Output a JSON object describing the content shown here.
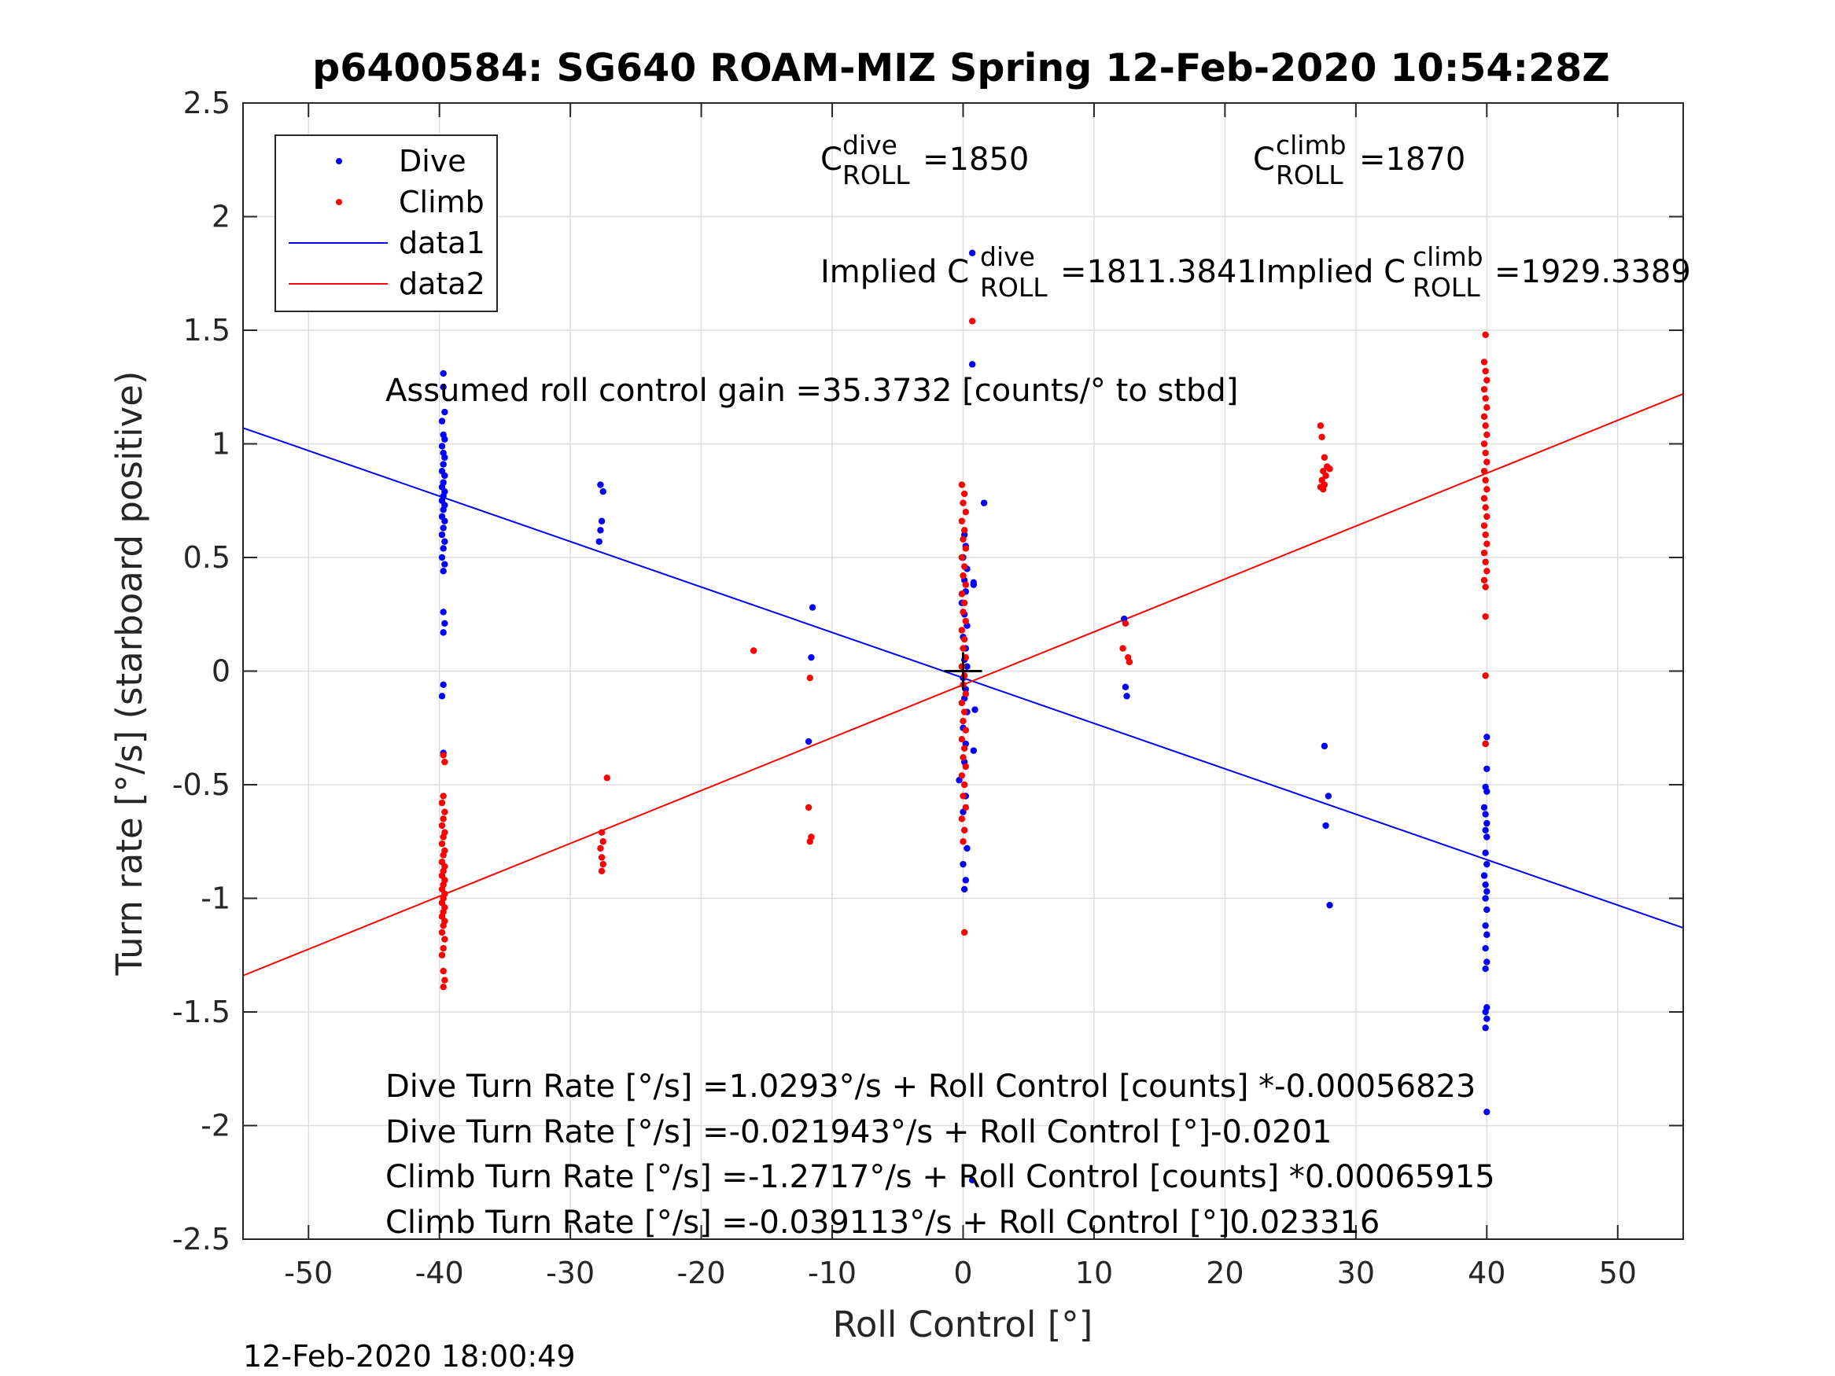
{
  "chart_data": {
    "type": "scatter",
    "title": "p6400584: SG640 ROAM-MIZ Spring 12-Feb-2020 10:54:28Z",
    "xlabel": "Roll Control [°]",
    "ylabel": "Turn rate [°/s] (starboard positive)",
    "xlim": [
      -55,
      55
    ],
    "ylim": [
      -2.5,
      2.5
    ],
    "xticks": [
      -50,
      -40,
      -30,
      -20,
      -10,
      0,
      10,
      20,
      30,
      40,
      50
    ],
    "xtick_labels": [
      "-50",
      "-40",
      "-30",
      "-20",
      "-10",
      "0",
      "10",
      "20",
      "30",
      "40",
      "50"
    ],
    "yticks": [
      -2.5,
      -2,
      -1.5,
      -1,
      -0.5,
      0,
      0.5,
      1,
      1.5,
      2,
      2.5
    ],
    "ytick_labels": [
      "-2.5",
      "-2",
      "-1.5",
      "-1",
      "-0.5",
      "0",
      "0.5",
      "1",
      "1.5",
      "2",
      "2.5"
    ],
    "grid": true,
    "legend_position": "top-left",
    "series": [
      {
        "name": "Dive",
        "kind": "points",
        "color": "#0000ff",
        "points": [
          [
            -39.7,
            1.31
          ],
          [
            -39.7,
            1.25
          ],
          [
            -39.6,
            1.14
          ],
          [
            -39.8,
            1.1
          ],
          [
            -39.7,
            1.04
          ],
          [
            -39.6,
            1.02
          ],
          [
            -39.8,
            0.99
          ],
          [
            -39.7,
            0.96
          ],
          [
            -39.6,
            0.94
          ],
          [
            -39.7,
            0.91
          ],
          [
            -39.8,
            0.88
          ],
          [
            -39.6,
            0.86
          ],
          [
            -39.7,
            0.83
          ],
          [
            -39.8,
            0.81
          ],
          [
            -39.6,
            0.79
          ],
          [
            -39.7,
            0.77
          ],
          [
            -39.8,
            0.75
          ],
          [
            -39.6,
            0.73
          ],
          [
            -39.7,
            0.71
          ],
          [
            -39.8,
            0.68
          ],
          [
            -39.6,
            0.66
          ],
          [
            -39.7,
            0.63
          ],
          [
            -39.8,
            0.6
          ],
          [
            -39.6,
            0.57
          ],
          [
            -39.7,
            0.54
          ],
          [
            -39.8,
            0.5
          ],
          [
            -39.6,
            0.47
          ],
          [
            -39.7,
            0.44
          ],
          [
            -39.7,
            0.26
          ],
          [
            -39.6,
            0.21
          ],
          [
            -39.7,
            0.17
          ],
          [
            -39.7,
            -0.06
          ],
          [
            -39.8,
            -0.11
          ],
          [
            -39.7,
            -0.36
          ],
          [
            -27.7,
            0.82
          ],
          [
            -27.5,
            0.79
          ],
          [
            -27.6,
            0.66
          ],
          [
            -27.7,
            0.62
          ],
          [
            -27.8,
            0.57
          ],
          [
            -11.5,
            0.28
          ],
          [
            -11.6,
            0.06
          ],
          [
            -11.8,
            -0.31
          ],
          [
            0.1,
            0.6
          ],
          [
            0.2,
            0.55
          ],
          [
            0.0,
            0.5
          ],
          [
            0.3,
            0.45
          ],
          [
            0.1,
            0.4
          ],
          [
            0.2,
            0.35
          ],
          [
            -0.1,
            0.3
          ],
          [
            0.1,
            0.25
          ],
          [
            0.3,
            0.2
          ],
          [
            0.0,
            0.15
          ],
          [
            0.2,
            0.1
          ],
          [
            0.1,
            0.05
          ],
          [
            0.3,
            0.02
          ],
          [
            0.0,
            -0.03
          ],
          [
            0.2,
            -0.08
          ],
          [
            0.1,
            -0.12
          ],
          [
            0.3,
            -0.18
          ],
          [
            0.0,
            -0.25
          ],
          [
            0.2,
            -0.32
          ],
          [
            0.1,
            -0.4
          ],
          [
            -0.3,
            -0.48
          ],
          [
            0.2,
            -0.55
          ],
          [
            0.0,
            -0.62
          ],
          [
            0.1,
            -0.7
          ],
          [
            0.3,
            -0.78
          ],
          [
            0.0,
            -0.85
          ],
          [
            0.2,
            -0.92
          ],
          [
            0.1,
            -0.96
          ],
          [
            0.7,
            1.84
          ],
          [
            0.7,
            1.35
          ],
          [
            0.8,
            0.39
          ],
          [
            0.8,
            0.38
          ],
          [
            1.6,
            0.74
          ],
          [
            0.9,
            -0.17
          ],
          [
            0.8,
            -0.35
          ],
          [
            0.7,
            -2.24
          ],
          [
            12.3,
            0.23
          ],
          [
            12.4,
            -0.07
          ],
          [
            12.5,
            -0.11
          ],
          [
            27.6,
            -0.33
          ],
          [
            27.9,
            -0.55
          ],
          [
            27.7,
            -0.68
          ],
          [
            28.0,
            -1.03
          ],
          [
            40.0,
            -0.29
          ],
          [
            39.9,
            -0.32
          ],
          [
            40.0,
            -0.43
          ],
          [
            39.9,
            -0.51
          ],
          [
            40.0,
            -0.53
          ],
          [
            39.8,
            -0.6
          ],
          [
            39.9,
            -0.63
          ],
          [
            40.0,
            -0.67
          ],
          [
            39.9,
            -0.7
          ],
          [
            40.0,
            -0.73
          ],
          [
            39.9,
            -0.8
          ],
          [
            40.0,
            -0.85
          ],
          [
            39.8,
            -0.9
          ],
          [
            39.9,
            -0.94
          ],
          [
            40.0,
            -0.97
          ],
          [
            39.9,
            -1.0
          ],
          [
            40.0,
            -1.05
          ],
          [
            39.9,
            -1.12
          ],
          [
            40.0,
            -1.16
          ],
          [
            39.9,
            -1.22
          ],
          [
            40.0,
            -1.28
          ],
          [
            39.9,
            -1.31
          ],
          [
            40.0,
            -1.48
          ],
          [
            39.9,
            -1.5
          ],
          [
            40.0,
            -1.53
          ],
          [
            39.9,
            -1.57
          ],
          [
            40.0,
            -1.94
          ]
        ]
      },
      {
        "name": "Climb",
        "kind": "points",
        "color": "#ff0000",
        "points": [
          [
            -39.7,
            -0.37
          ],
          [
            -39.6,
            -0.4
          ],
          [
            -39.7,
            -0.55
          ],
          [
            -39.8,
            -0.58
          ],
          [
            -39.6,
            -0.62
          ],
          [
            -39.7,
            -0.65
          ],
          [
            -39.8,
            -0.68
          ],
          [
            -39.6,
            -0.71
          ],
          [
            -39.7,
            -0.73
          ],
          [
            -39.8,
            -0.76
          ],
          [
            -39.6,
            -0.79
          ],
          [
            -39.7,
            -0.81
          ],
          [
            -39.8,
            -0.84
          ],
          [
            -39.6,
            -0.86
          ],
          [
            -39.7,
            -0.88
          ],
          [
            -39.8,
            -0.9
          ],
          [
            -39.6,
            -0.92
          ],
          [
            -39.7,
            -0.94
          ],
          [
            -39.8,
            -0.96
          ],
          [
            -39.6,
            -0.98
          ],
          [
            -39.7,
            -1.0
          ],
          [
            -39.8,
            -1.02
          ],
          [
            -39.6,
            -1.04
          ],
          [
            -39.7,
            -1.06
          ],
          [
            -39.8,
            -1.08
          ],
          [
            -39.6,
            -1.1
          ],
          [
            -39.7,
            -1.12
          ],
          [
            -39.8,
            -1.15
          ],
          [
            -39.6,
            -1.18
          ],
          [
            -39.7,
            -1.22
          ],
          [
            -39.8,
            -1.25
          ],
          [
            -39.7,
            -1.32
          ],
          [
            -39.6,
            -1.36
          ],
          [
            -39.7,
            -1.39
          ],
          [
            -27.2,
            -0.47
          ],
          [
            -27.6,
            -0.71
          ],
          [
            -27.5,
            -0.75
          ],
          [
            -27.7,
            -0.78
          ],
          [
            -27.6,
            -0.82
          ],
          [
            -27.5,
            -0.85
          ],
          [
            -27.6,
            -0.88
          ],
          [
            -16.0,
            0.09
          ],
          [
            -11.7,
            -0.03
          ],
          [
            -11.8,
            -0.6
          ],
          [
            -11.6,
            -0.73
          ],
          [
            -11.7,
            -0.75
          ],
          [
            -0.1,
            0.82
          ],
          [
            0.1,
            0.78
          ],
          [
            0.0,
            0.74
          ],
          [
            0.2,
            0.7
          ],
          [
            -0.1,
            0.66
          ],
          [
            0.1,
            0.62
          ],
          [
            0.0,
            0.58
          ],
          [
            0.2,
            0.54
          ],
          [
            -0.1,
            0.5
          ],
          [
            0.1,
            0.46
          ],
          [
            0.0,
            0.42
          ],
          [
            0.2,
            0.38
          ],
          [
            -0.1,
            0.34
          ],
          [
            0.1,
            0.3
          ],
          [
            0.0,
            0.26
          ],
          [
            0.2,
            0.22
          ],
          [
            -0.1,
            0.18
          ],
          [
            0.1,
            0.14
          ],
          [
            0.0,
            0.1
          ],
          [
            0.2,
            0.06
          ],
          [
            -0.1,
            0.02
          ],
          [
            0.1,
            -0.02
          ],
          [
            0.0,
            -0.06
          ],
          [
            0.2,
            -0.1
          ],
          [
            -0.1,
            -0.14
          ],
          [
            0.1,
            -0.18
          ],
          [
            0.0,
            -0.22
          ],
          [
            0.2,
            -0.26
          ],
          [
            -0.1,
            -0.3
          ],
          [
            0.1,
            -0.34
          ],
          [
            0.0,
            -0.38
          ],
          [
            0.2,
            -0.42
          ],
          [
            -0.1,
            -0.46
          ],
          [
            0.1,
            -0.5
          ],
          [
            0.0,
            -0.55
          ],
          [
            0.2,
            -0.6
          ],
          [
            -0.1,
            -0.65
          ],
          [
            0.1,
            -0.7
          ],
          [
            0.0,
            -0.75
          ],
          [
            0.1,
            -1.15
          ],
          [
            12.2,
            0.1
          ],
          [
            12.4,
            0.21
          ],
          [
            12.6,
            0.06
          ],
          [
            12.7,
            0.04
          ],
          [
            27.3,
            1.08
          ],
          [
            27.4,
            1.03
          ],
          [
            27.6,
            0.94
          ],
          [
            27.8,
            0.9
          ],
          [
            28.0,
            0.89
          ],
          [
            27.5,
            0.88
          ],
          [
            27.7,
            0.86
          ],
          [
            27.4,
            0.84
          ],
          [
            27.6,
            0.82
          ],
          [
            27.3,
            0.81
          ],
          [
            27.5,
            0.8
          ],
          [
            39.9,
            1.48
          ],
          [
            39.8,
            1.36
          ],
          [
            39.9,
            1.32
          ],
          [
            40.0,
            1.28
          ],
          [
            39.8,
            1.24
          ],
          [
            39.9,
            1.2
          ],
          [
            40.0,
            1.16
          ],
          [
            39.8,
            1.12
          ],
          [
            39.9,
            1.08
          ],
          [
            40.0,
            1.04
          ],
          [
            39.8,
            1.0
          ],
          [
            39.9,
            0.96
          ],
          [
            40.0,
            0.92
          ],
          [
            39.8,
            0.88
          ],
          [
            39.9,
            0.84
          ],
          [
            40.0,
            0.8
          ],
          [
            39.8,
            0.76
          ],
          [
            39.9,
            0.72
          ],
          [
            40.0,
            0.68
          ],
          [
            39.8,
            0.64
          ],
          [
            39.9,
            0.6
          ],
          [
            40.0,
            0.56
          ],
          [
            39.8,
            0.52
          ],
          [
            39.9,
            0.48
          ],
          [
            40.0,
            0.44
          ],
          [
            39.8,
            0.4
          ],
          [
            39.9,
            0.37
          ],
          [
            39.9,
            0.24
          ],
          [
            39.9,
            -0.02
          ],
          [
            39.9,
            -0.32
          ],
          [
            0.7,
            1.54
          ]
        ]
      },
      {
        "name": "data1",
        "kind": "line",
        "color": "#0000ff",
        "x": [
          -55,
          55
        ],
        "y": [
          1.07,
          -1.13
        ]
      },
      {
        "name": "data2",
        "kind": "line",
        "color": "#ff0000",
        "x": [
          -55,
          55
        ],
        "y": [
          -1.34,
          1.22
        ]
      }
    ],
    "marker": {
      "x": 0,
      "y": 0,
      "symbol": "+",
      "color": "#000000"
    },
    "annotations": {
      "c_dive": {
        "main": "C",
        "sup": "dive",
        "sub": "ROLL",
        "value": "=1850"
      },
      "c_climb": {
        "main": "C",
        "sup": "climb",
        "sub": "ROLL",
        "value": "=1870"
      },
      "implied_dive": {
        "main": "Implied C",
        "sup": "dive",
        "sub": "ROLL",
        "value": "=1811.3841"
      },
      "implied_climb": {
        "main": "Implied C",
        "sup": "climb",
        "sub": "ROLL",
        "value": "=1929.3389"
      },
      "gain": "Assumed roll control gain =35.3732 [counts/° to stbd]",
      "equations": [
        "Dive Turn Rate [°/s] =1.0293°/s + Roll Control [counts] *-0.00056823",
        "Dive Turn Rate [°/s] =-0.021943°/s + Roll Control [°]-0.0201",
        "Climb Turn Rate [°/s] =-1.2717°/s + Roll Control [counts] *0.00065915",
        "Climb Turn Rate [°/s] =-0.039113°/s + Roll Control [°]0.023316"
      ]
    },
    "footer": "12-Feb-2020 18:00:49"
  }
}
